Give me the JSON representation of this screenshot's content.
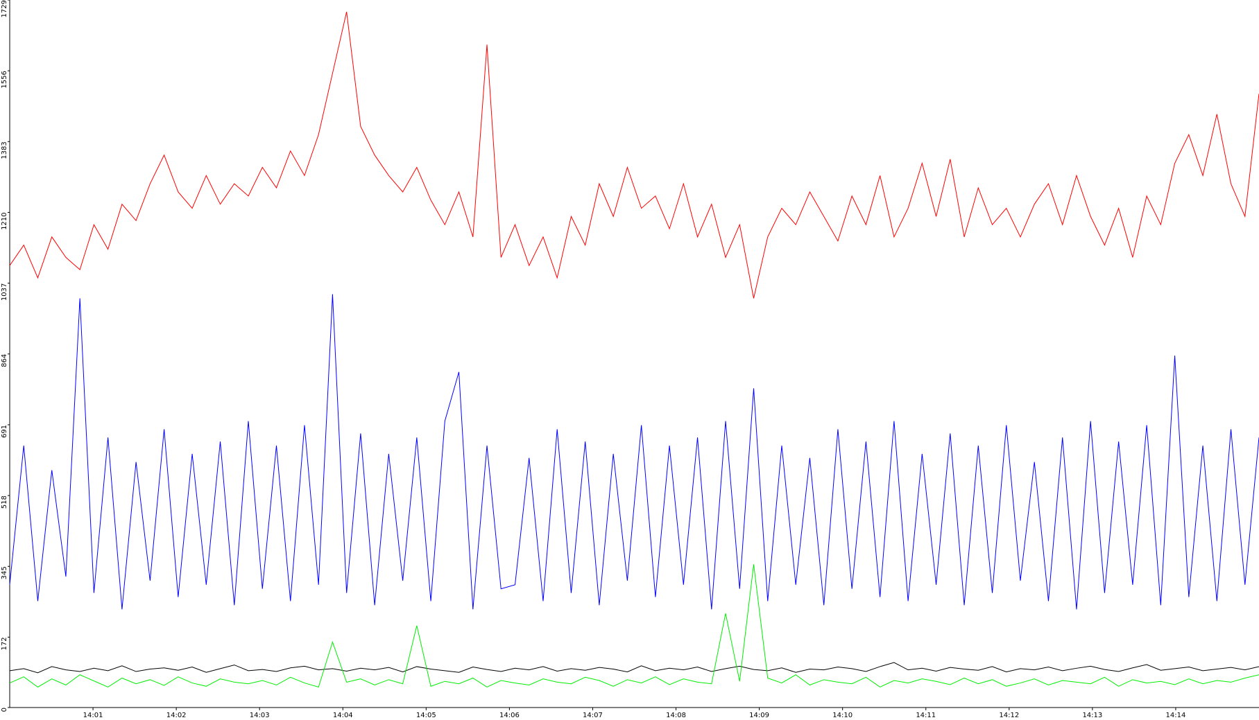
{
  "chart_data": {
    "type": "line",
    "xlim": [
      "14:00",
      "14:15"
    ],
    "xticks": [
      "14:01",
      "14:02",
      "14:03",
      "14:04",
      "14:05",
      "14:06",
      "14:07",
      "14:08",
      "14:09",
      "14:10",
      "14:11",
      "14:12",
      "14:13",
      "14:14"
    ],
    "ylim": [
      0,
      1729
    ],
    "yticks": [
      0,
      172,
      345,
      518,
      691,
      864,
      1037,
      1210,
      1383,
      1556,
      1729
    ],
    "grid": false,
    "series": [
      {
        "color": "#ff0000",
        "values": [
          1080,
          1130,
          1050,
          1150,
          1100,
          1070,
          1180,
          1120,
          1230,
          1190,
          1280,
          1350,
          1260,
          1220,
          1300,
          1230,
          1280,
          1250,
          1320,
          1270,
          1360,
          1300,
          1400,
          1550,
          1700,
          1420,
          1350,
          1300,
          1260,
          1320,
          1240,
          1180,
          1260,
          1150,
          1620,
          1100,
          1180,
          1080,
          1150,
          1050,
          1200,
          1130,
          1280,
          1200,
          1320,
          1220,
          1250,
          1170,
          1280,
          1150,
          1230,
          1100,
          1180,
          1000,
          1150,
          1220,
          1180,
          1260,
          1200,
          1140,
          1250,
          1180,
          1300,
          1150,
          1220,
          1330,
          1200,
          1340,
          1150,
          1270,
          1180,
          1220,
          1150,
          1230,
          1280,
          1180,
          1300,
          1200,
          1130,
          1220,
          1100,
          1250,
          1180,
          1330,
          1400,
          1300,
          1450,
          1280,
          1200,
          1500
        ]
      },
      {
        "color": "#0000ff",
        "values": [
          300,
          640,
          260,
          580,
          320,
          1000,
          280,
          660,
          240,
          600,
          310,
          680,
          270,
          620,
          300,
          650,
          250,
          700,
          290,
          640,
          260,
          690,
          300,
          1010,
          280,
          670,
          250,
          620,
          310,
          660,
          260,
          700,
          820,
          240,
          640,
          290,
          300,
          610,
          260,
          680,
          280,
          650,
          250,
          620,
          310,
          690,
          270,
          640,
          300,
          660,
          240,
          700,
          290,
          780,
          260,
          640,
          300,
          610,
          250,
          680,
          290,
          650,
          270,
          700,
          260,
          620,
          300,
          670,
          250,
          640,
          280,
          690,
          310,
          600,
          260,
          660,
          240,
          700,
          280,
          650,
          300,
          690,
          250,
          860,
          270,
          640,
          260,
          680,
          300,
          660
        ]
      },
      {
        "color": "#000000",
        "values": [
          90,
          95,
          85,
          100,
          92,
          88,
          96,
          90,
          102,
          88,
          94,
          97,
          91,
          99,
          86,
          95,
          104,
          90,
          93,
          88,
          97,
          101,
          92,
          95,
          89,
          96,
          92,
          98,
          87,
          100,
          94,
          90,
          86,
          99,
          93,
          88,
          96,
          92,
          100,
          89,
          95,
          91,
          98,
          94,
          87,
          102,
          90,
          96,
          92,
          99,
          88,
          95,
          101,
          93,
          90,
          97,
          86,
          94,
          92,
          99,
          95,
          88,
          100,
          110,
          92,
          96,
          89,
          98,
          94,
          91,
          100,
          87,
          95,
          92,
          99,
          90,
          96,
          101,
          93,
          88,
          97,
          105,
          91,
          95,
          99,
          90,
          94,
          98,
          92,
          100
        ]
      },
      {
        "color": "#00ee00",
        "values": [
          60,
          75,
          50,
          70,
          55,
          80,
          65,
          50,
          72,
          58,
          68,
          54,
          75,
          60,
          52,
          70,
          62,
          58,
          66,
          55,
          74,
          60,
          50,
          160,
          62,
          70,
          55,
          68,
          58,
          200,
          52,
          64,
          58,
          72,
          50,
          66,
          60,
          55,
          70,
          62,
          58,
          74,
          66,
          52,
          68,
          60,
          75,
          56,
          70,
          62,
          58,
          230,
          64,
          350,
          72,
          60,
          80,
          55,
          68,
          62,
          58,
          74,
          50,
          66,
          60,
          70,
          64,
          56,
          72,
          58,
          68,
          52,
          60,
          70,
          55,
          66,
          62,
          58,
          74,
          52,
          68,
          60,
          64,
          56,
          70,
          58,
          66,
          62,
          72,
          80
        ]
      }
    ]
  }
}
